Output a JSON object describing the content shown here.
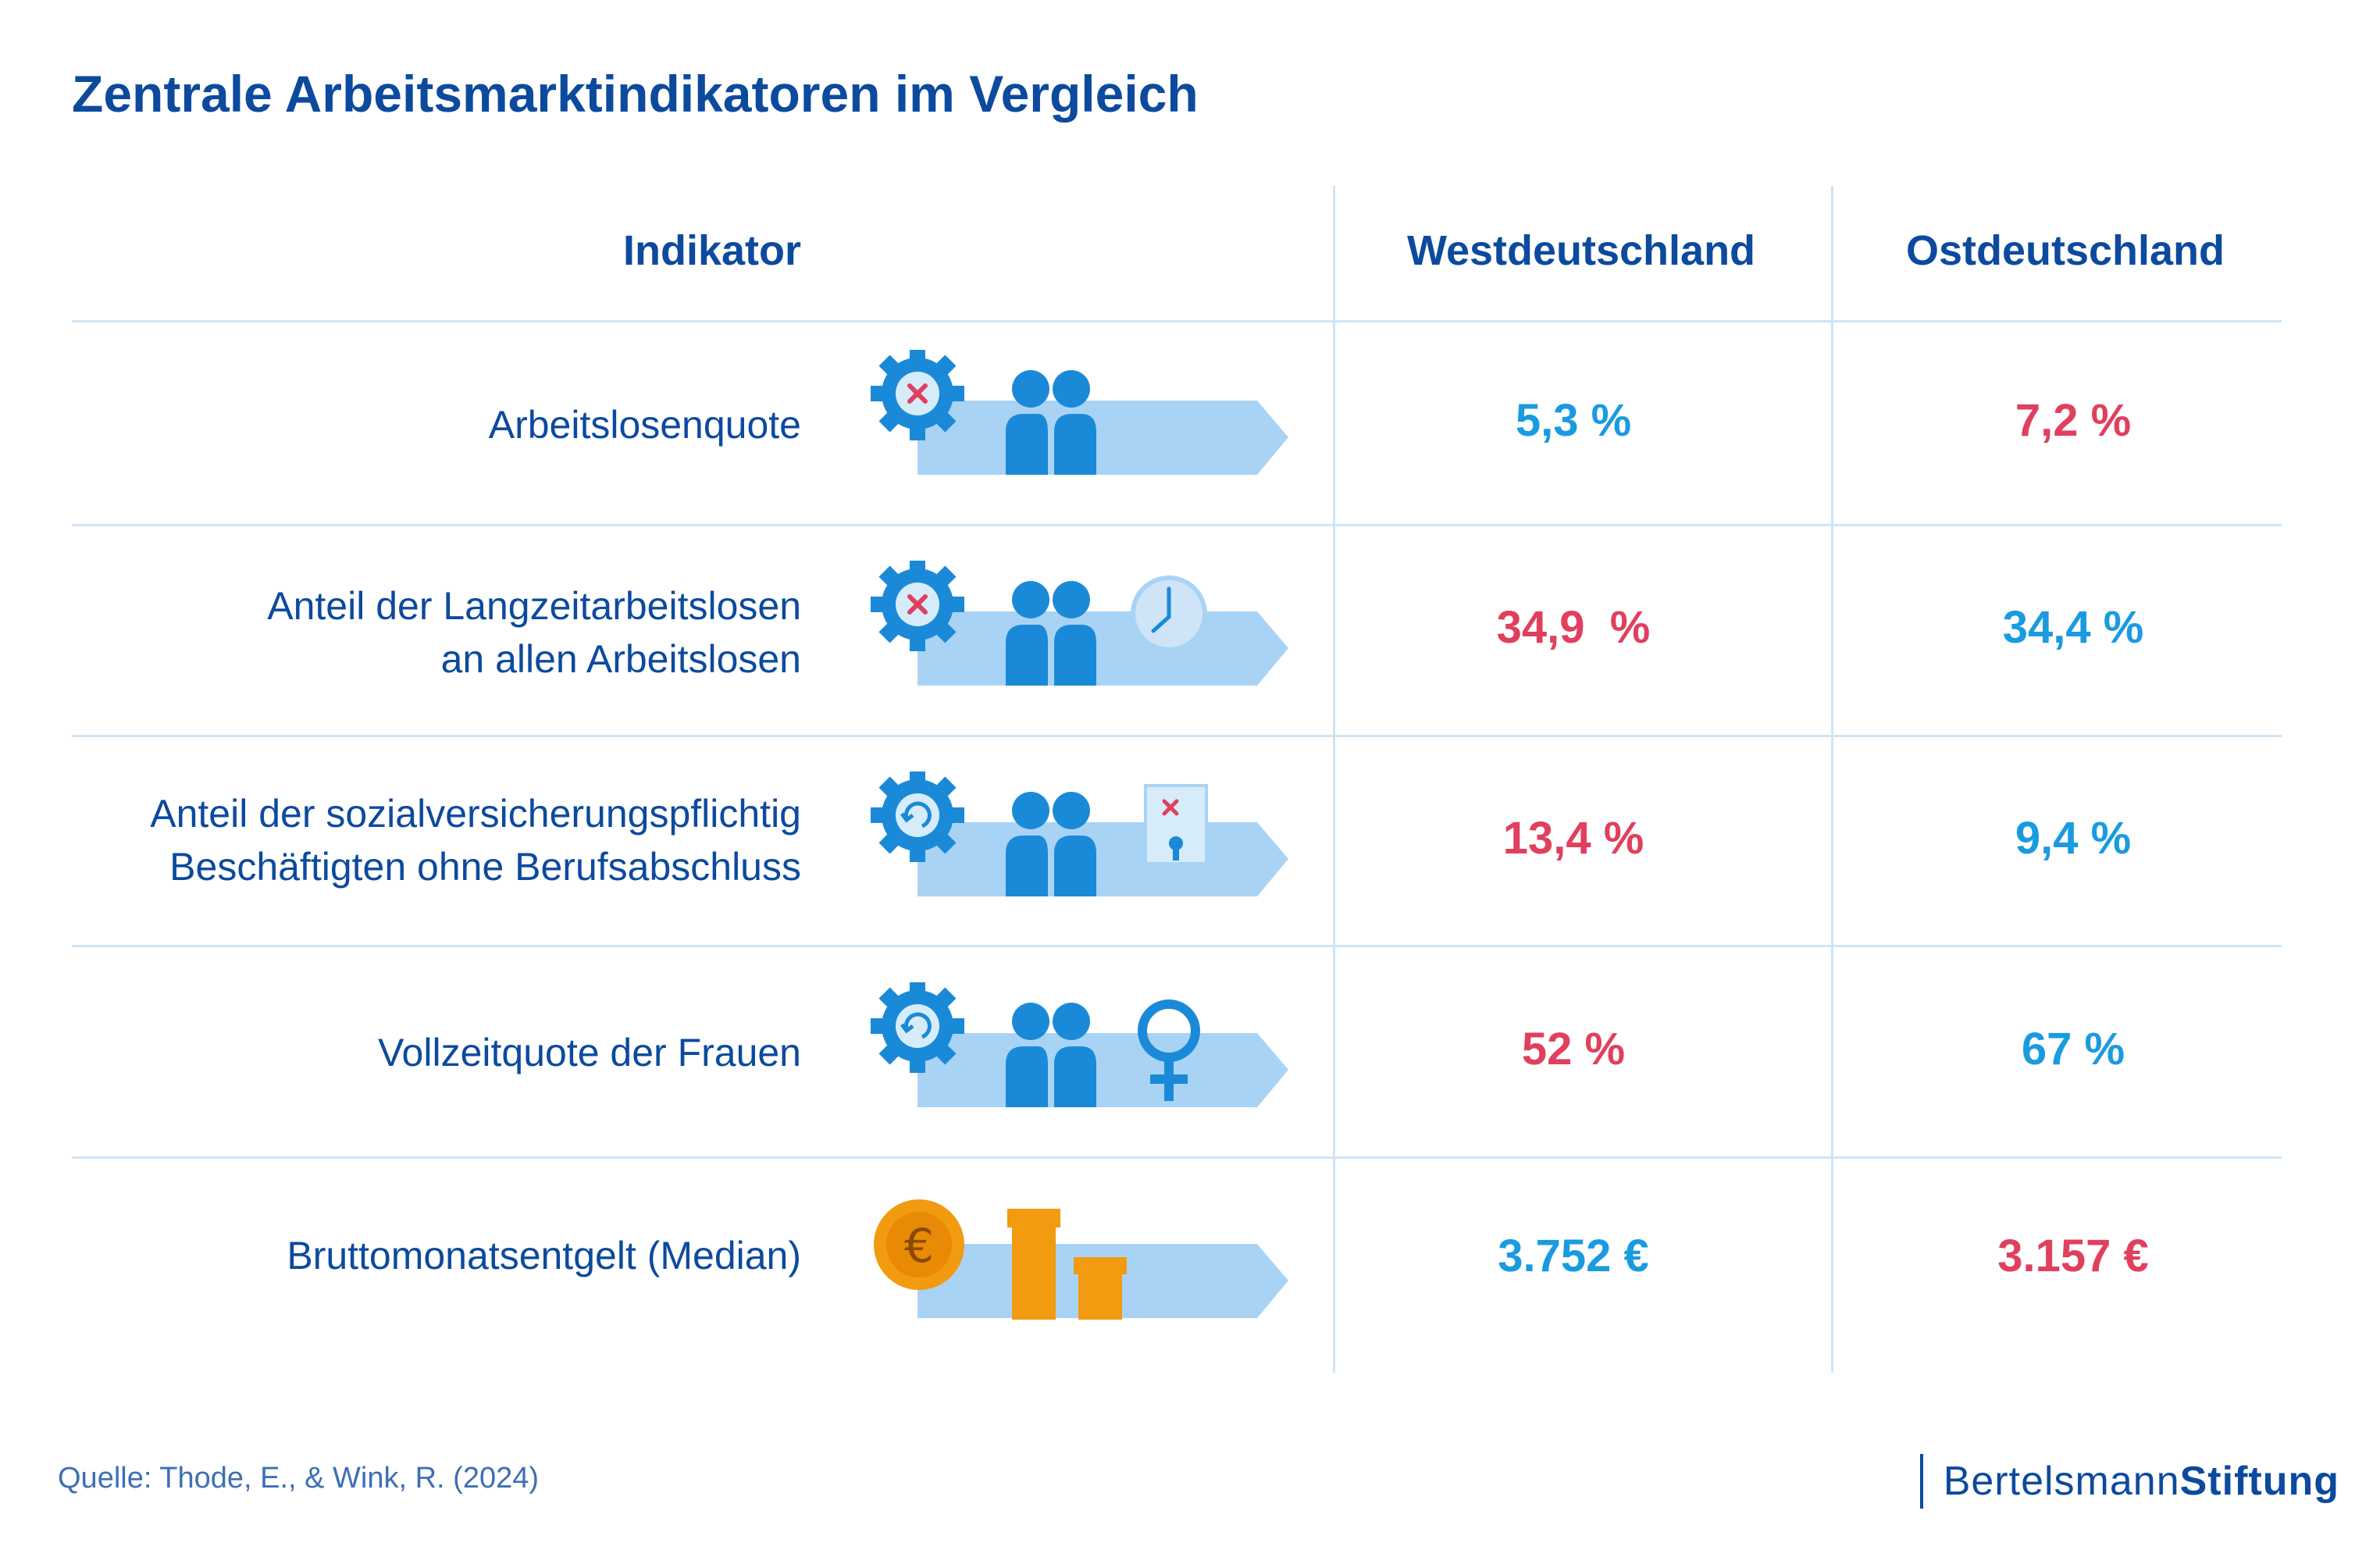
{
  "title": "Zentrale Arbeitsmarktindikatoren im Vergleich",
  "table": {
    "headers": {
      "indicator": "Indikator",
      "west": "Westdeutschland",
      "east": "Ostdeutschland"
    },
    "rows": [
      {
        "label_lines": [
          "Arbeitslosenquote"
        ],
        "icon": "gear-x-people-arrow-icon",
        "west": "5,3 %",
        "west_color": "#1a9be0",
        "east": "7,2 %",
        "east_color": "#e0405e"
      },
      {
        "label_lines": [
          "Anteil der Langzeitarbeitslosen",
          "an allen Arbeitslosen"
        ],
        "icon": "gear-x-people-clock-arrow-icon",
        "west": "34,9  %",
        "west_color": "#e0405e",
        "east": "34,4 %",
        "east_color": "#1a9be0"
      },
      {
        "label_lines": [
          "Anteil der sozialversicherungspflichtig",
          "Beschäftigten ohne Berufsabschluss"
        ],
        "icon": "gear-cycle-people-certificate-arrow-icon",
        "west": "13,4 %",
        "west_color": "#e0405e",
        "east": "9,4 %",
        "east_color": "#1a9be0"
      },
      {
        "label_lines": [
          "Vollzeitquote der Frauen"
        ],
        "icon": "gear-cycle-people-female-arrow-icon",
        "west": "52 %",
        "west_color": "#e0405e",
        "east": "67 %",
        "east_color": "#1a9be0"
      },
      {
        "label_lines": [
          "Bruttomonatsentgelt (Median)"
        ],
        "icon": "euro-coin-stacks-arrow-icon",
        "west": "3.752 €",
        "west_color": "#1a9be0",
        "east": "3.157 €",
        "east_color": "#e0405e"
      }
    ]
  },
  "source": "Quelle: Thode, E., & Wink, R. (2024)",
  "brand": {
    "part1": "Bertelsmann",
    "part2": "Stiftung"
  },
  "colors": {
    "primary": "#0c4a9e",
    "positive_blue": "#1a9be0",
    "negative_red": "#e0405e",
    "divider": "#cfe4f6"
  }
}
